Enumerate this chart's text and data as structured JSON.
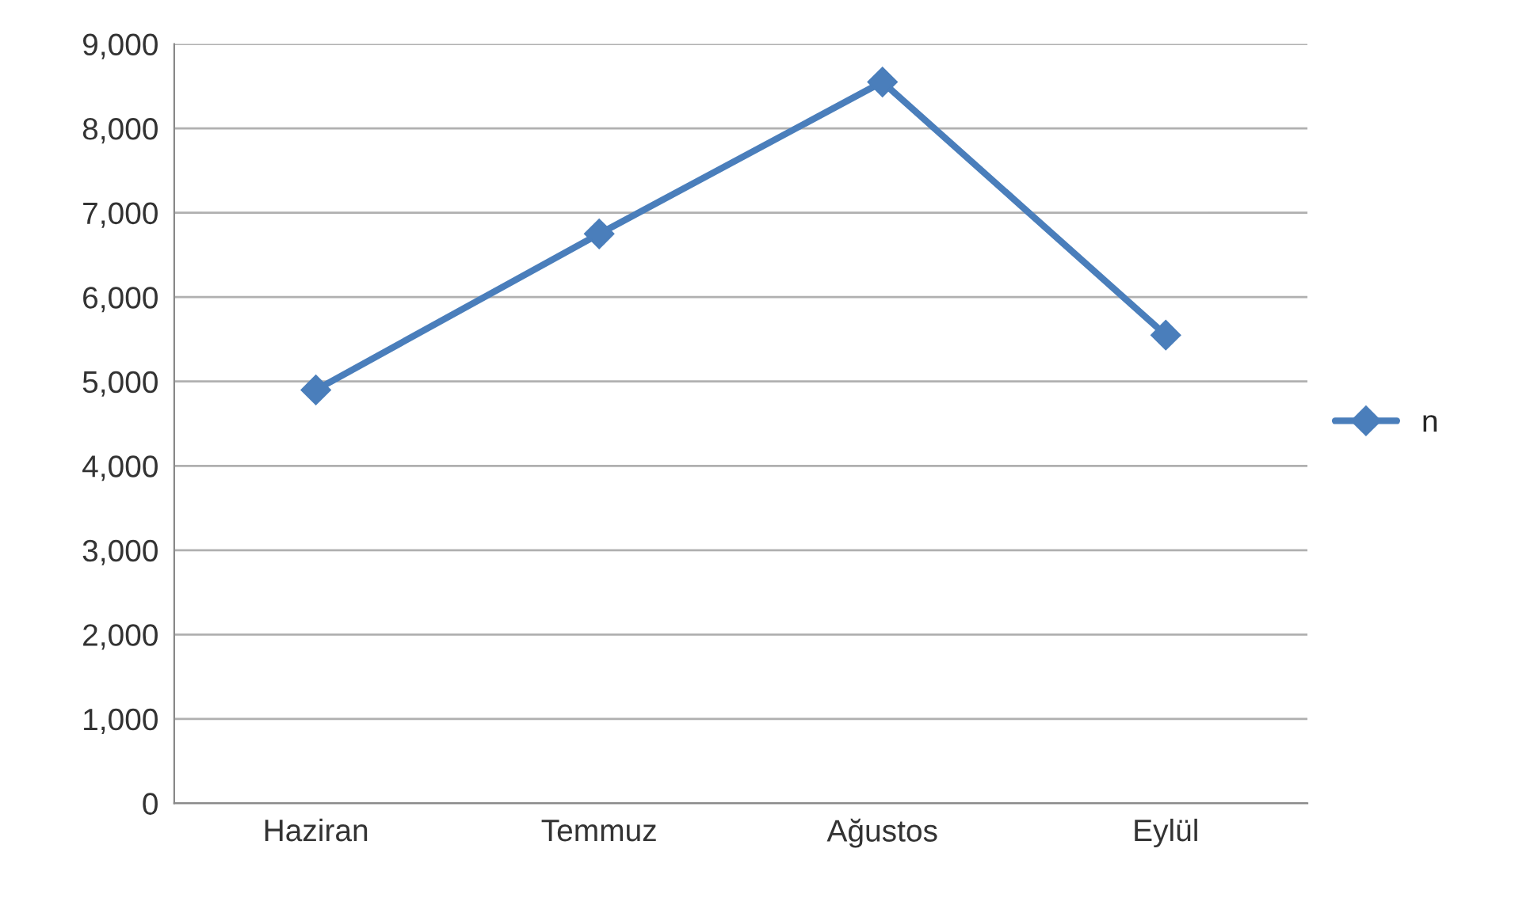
{
  "chart_data": {
    "type": "line",
    "categories": [
      "Haziran",
      "Temmuz",
      "Ağustos",
      "Eylül"
    ],
    "series": [
      {
        "name": "n",
        "color": "#4a7ebb",
        "values": [
          4900,
          6750,
          8550,
          5550
        ]
      }
    ],
    "ylim": [
      0,
      9000
    ],
    "yticks": [
      {
        "value": 0,
        "label": "0"
      },
      {
        "value": 1000,
        "label": "1,000"
      },
      {
        "value": 2000,
        "label": "2,000"
      },
      {
        "value": 3000,
        "label": "3,000"
      },
      {
        "value": 4000,
        "label": "4,000"
      },
      {
        "value": 5000,
        "label": "5,000"
      },
      {
        "value": 6000,
        "label": "6,000"
      },
      {
        "value": 7000,
        "label": "7,000"
      },
      {
        "value": 8000,
        "label": "8,000"
      },
      {
        "value": 9000,
        "label": "9,000"
      }
    ],
    "grid": "y",
    "legend": "right",
    "marker": "diamond",
    "line_style": "solid"
  }
}
